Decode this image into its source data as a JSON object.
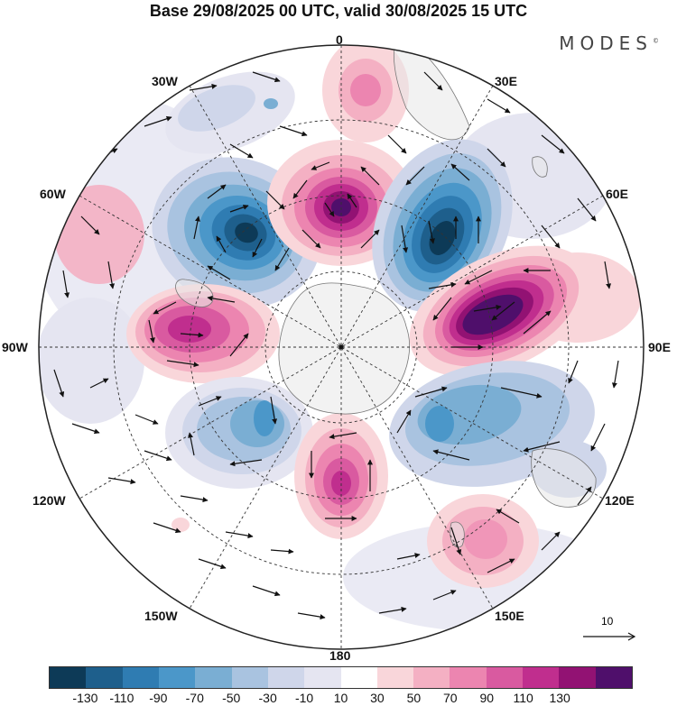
{
  "title": "Base 29/08/2025 00 UTC, valid 30/08/2025 15 UTC",
  "brand": "MODES",
  "brand_mark": "©",
  "longitude_labels": {
    "lon_0": "0",
    "lon_30e": "30E",
    "lon_60e": "60E",
    "lon_90e": "90E",
    "lon_120e": "120E",
    "lon_150e": "150E",
    "lon_180": "180",
    "lon_150w": "150W",
    "lon_120w": "120W",
    "lon_90w": "90W",
    "lon_60w": "60W",
    "lon_30w": "30W"
  },
  "reference_vector": {
    "label": "10",
    "value": 10
  },
  "colorbar": {
    "colors": [
      "#0d3a57",
      "#1e5f8c",
      "#2f7cb2",
      "#4b97c9",
      "#7aaed3",
      "#a9c3e0",
      "#cfd6ea",
      "#e5e5f1",
      "#ffffff",
      "#f9d6da",
      "#f4b0c3",
      "#ec85b0",
      "#d95aa0",
      "#c02e8e",
      "#921273",
      "#4f0f6b"
    ],
    "tick_labels": [
      "-130",
      "-110",
      "-90",
      "-70",
      "-50",
      "-30",
      "-10",
      "10",
      "30",
      "50",
      "70",
      "90",
      "110",
      "130"
    ]
  },
  "palette": {
    "ocean": "#ffffff",
    "land": "#e8e8e8",
    "coast": "#777777",
    "vector": "#111111"
  }
}
